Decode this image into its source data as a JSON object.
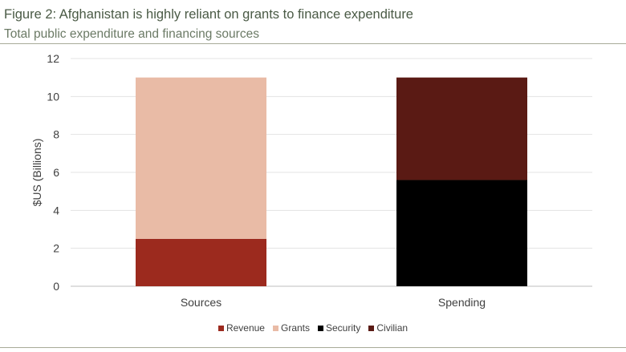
{
  "figure": {
    "title": "Figure 2: Afghanistan is highly reliant on grants to finance expenditure",
    "subtitle": "Total public expenditure and financing sources"
  },
  "chart_data": {
    "type": "bar",
    "stacked": true,
    "categories": [
      "Sources",
      "Spending"
    ],
    "series": [
      {
        "name": "Revenue",
        "color": "#9c2a1e",
        "values": [
          2.5,
          0
        ]
      },
      {
        "name": "Grants",
        "color": "#e9bba6",
        "values": [
          8.5,
          0
        ]
      },
      {
        "name": "Security",
        "color": "#000000",
        "values": [
          0,
          5.6
        ]
      },
      {
        "name": "Civilian",
        "color": "#5a1a14",
        "values": [
          0,
          5.4
        ]
      }
    ],
    "ylabel": "$US (Billions)",
    "xlabel": "",
    "ylim": [
      0,
      12
    ],
    "yticks": [
      "0",
      "2",
      "4",
      "6",
      "8",
      "10",
      "12"
    ],
    "grid": true,
    "legend_position": "bottom"
  }
}
